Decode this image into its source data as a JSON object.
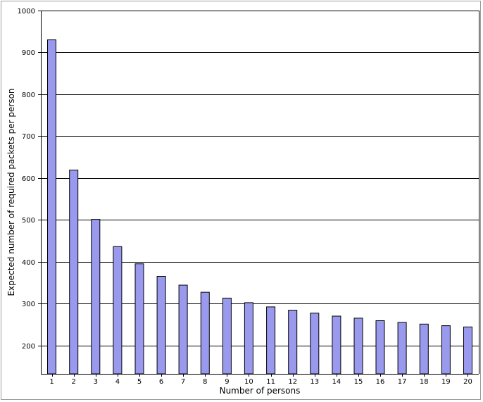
{
  "chart_data": {
    "type": "bar",
    "title": "",
    "xlabel": "Number of persons",
    "ylabel": "Expected number of required packets per person",
    "categories": [
      "1",
      "2",
      "3",
      "4",
      "5",
      "6",
      "7",
      "8",
      "9",
      "10",
      "11",
      "12",
      "13",
      "14",
      "15",
      "16",
      "17",
      "18",
      "19",
      "20"
    ],
    "values": [
      930,
      619,
      501,
      436,
      395,
      365,
      344,
      327,
      313,
      302,
      292,
      284,
      277,
      270,
      265,
      259,
      255,
      251,
      247,
      244
    ],
    "ylim": [
      132,
      1000
    ],
    "yticks": [
      200,
      300,
      400,
      500,
      600,
      700,
      800,
      900,
      1000
    ],
    "grid": "horizontal",
    "bar_color": "#9999ee",
    "bar_edge_color": "#000000"
  }
}
